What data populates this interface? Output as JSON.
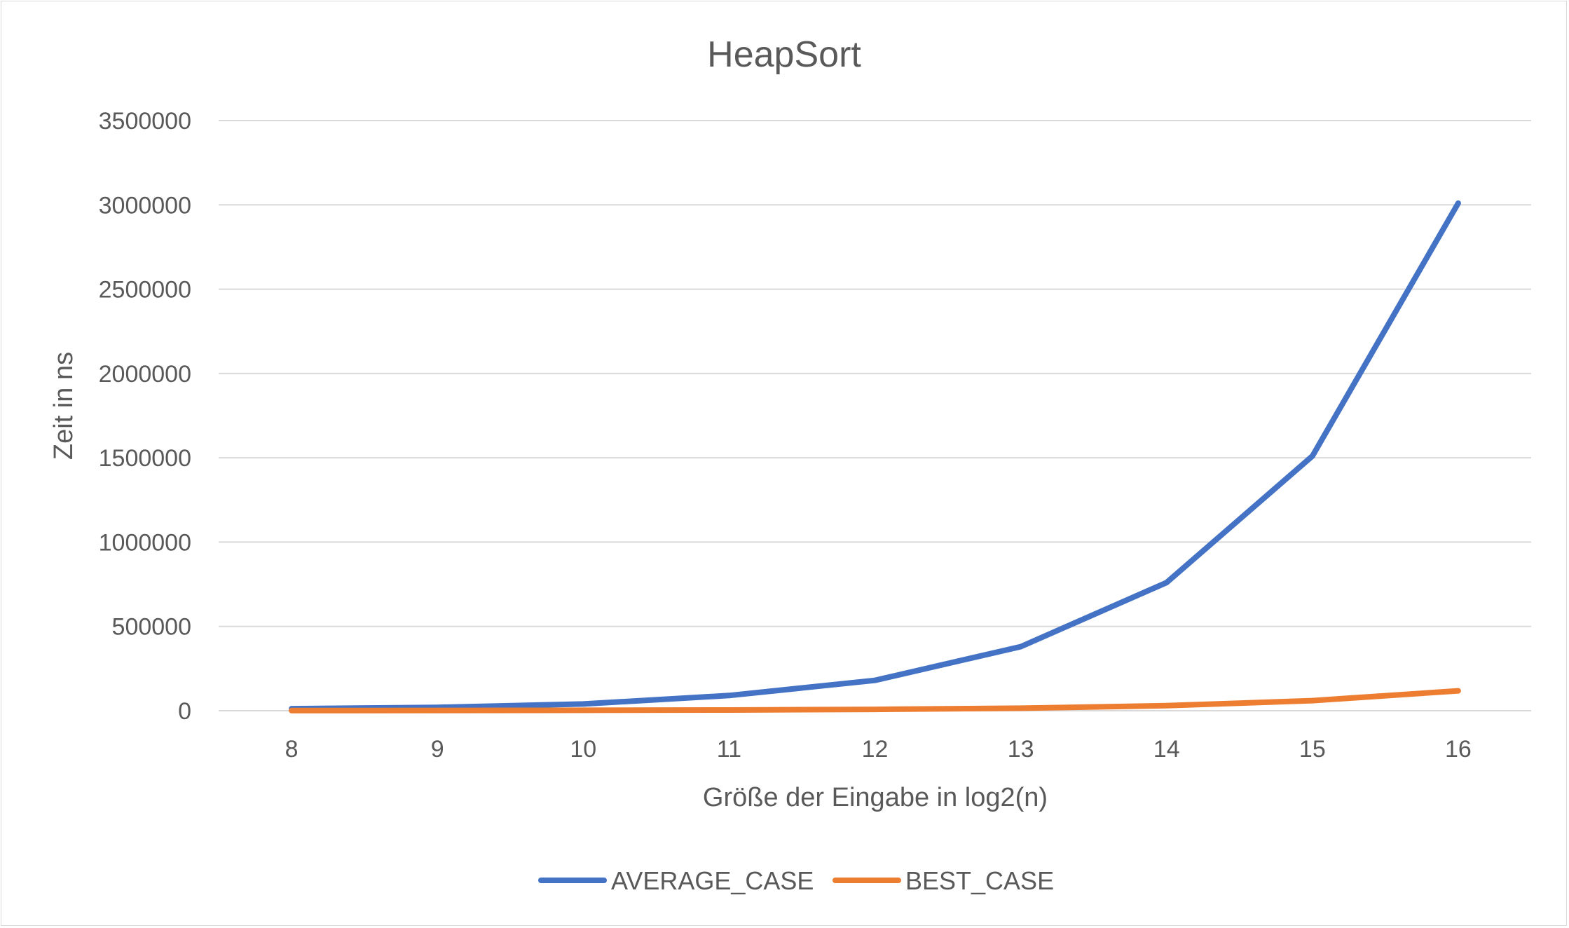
{
  "chart_data": {
    "type": "line",
    "title": "HeapSort",
    "xlabel": "Größe der Eingabe in log2(n)",
    "ylabel": "Zeit in ns",
    "categories": [
      "8",
      "9",
      "10",
      "11",
      "12",
      "13",
      "14",
      "15",
      "16"
    ],
    "series": [
      {
        "name": "AVERAGE_CASE",
        "color": "#4472c4",
        "values": [
          12000,
          20000,
          40000,
          90000,
          180000,
          380000,
          760000,
          1510000,
          3010000
        ]
      },
      {
        "name": "BEST_CASE",
        "color": "#ed7d31",
        "values": [
          1000,
          1500,
          2500,
          4000,
          8000,
          15000,
          30000,
          60000,
          118000
        ]
      }
    ],
    "yticks": [
      "0",
      "500000",
      "1000000",
      "1500000",
      "2000000",
      "2500000",
      "3000000",
      "3500000"
    ],
    "ylim": [
      0,
      3500000
    ],
    "grid": "horizontal",
    "legend_position": "bottom"
  }
}
